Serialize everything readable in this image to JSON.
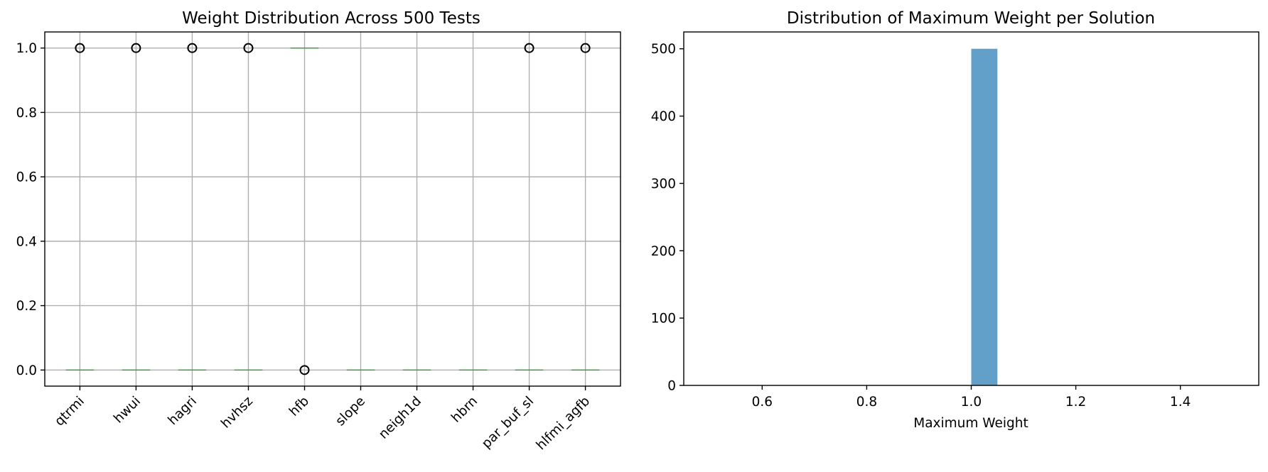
{
  "chart_data": [
    {
      "type": "box",
      "title": "Weight Distribution Across 500 Tests",
      "xlabel": "",
      "ylabel": "",
      "categories": [
        "qtrmi",
        "hwui",
        "hagri",
        "hvhsz",
        "hfb",
        "slope",
        "neigh1d",
        "hbrn",
        "par_buf_sl",
        "hlfmi_agfb"
      ],
      "medians": [
        0,
        0,
        0,
        0,
        1,
        0,
        0,
        0,
        0,
        0
      ],
      "outliers": [
        [
          1
        ],
        [
          1
        ],
        [
          1
        ],
        [
          1
        ],
        [
          0
        ],
        [],
        [],
        [],
        [
          1
        ],
        [
          1
        ]
      ],
      "yticks": [
        "0.0",
        "0.2",
        "0.4",
        "0.6",
        "0.8",
        "1.0"
      ],
      "ylim": [
        -0.05,
        1.05
      ],
      "grid": true,
      "colors": {
        "median": "#2ca02c",
        "flier": "#000000",
        "grid": "#b0b0b0"
      }
    },
    {
      "type": "histogram",
      "title": "Distribution of Maximum Weight per Solution",
      "xlabel": "Maximum Weight",
      "ylabel": "",
      "bars": [
        {
          "x0": 1.0,
          "x1": 1.05,
          "count": 500
        }
      ],
      "xticks": [
        "0.6",
        "0.8",
        "1.0",
        "1.2",
        "1.4"
      ],
      "yticks": [
        "0",
        "100",
        "200",
        "300",
        "400",
        "500"
      ],
      "xlim": [
        0.45,
        1.55
      ],
      "ylim": [
        0,
        525
      ],
      "grid": false,
      "colors": {
        "bar": "#1f77b4"
      }
    }
  ]
}
